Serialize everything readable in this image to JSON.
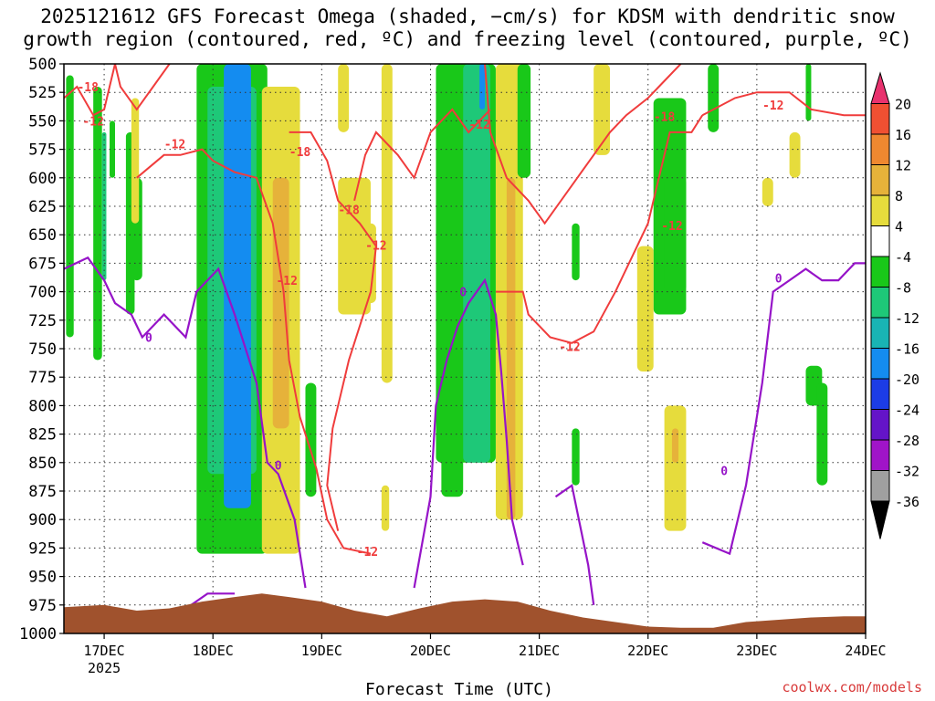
{
  "chart_data": {
    "type": "heatmap",
    "title_line1": "2025121612 GFS Forecast Omega (shaded, −cm/s) for KDSM with dendritic snow",
    "title_line2": "growth region (contoured, red, ºC) and freezing level (contoured, purple, ºC)",
    "xlabel": "Forecast Time (UTC)",
    "credit": "coolwx.com/models",
    "x_ticks": [
      {
        "label": "17DEC",
        "day": 1
      },
      {
        "label": "18DEC",
        "day": 2
      },
      {
        "label": "19DEC",
        "day": 3
      },
      {
        "label": "20DEC",
        "day": 4
      },
      {
        "label": "21DEC",
        "day": 5
      },
      {
        "label": "22DEC",
        "day": 6
      },
      {
        "label": "23DEC",
        "day": 7
      },
      {
        "label": "24DEC",
        "day": 8
      }
    ],
    "x_year_label": "2025",
    "x_range_days": [
      0.63,
      8.0
    ],
    "y_label_unit": "hPa",
    "y_ticks": [
      500,
      525,
      550,
      575,
      600,
      625,
      650,
      675,
      700,
      725,
      750,
      775,
      800,
      825,
      850,
      875,
      900,
      925,
      950,
      975,
      1000
    ],
    "y_range": [
      500,
      1000
    ],
    "colorbar": {
      "levels": [
        20,
        16,
        12,
        8,
        4,
        -4,
        -8,
        -12,
        -16,
        -20,
        -24,
        -28,
        -32,
        -36
      ],
      "colors": [
        "#e8326e",
        "#f05032",
        "#ef8830",
        "#e6b23a",
        "#e6dc3c",
        "#ffffff",
        "#19c819",
        "#1ec878",
        "#19b4b4",
        "#148cf0",
        "#1c3ce6",
        "#6414c8",
        "#a014c8",
        "#a0a0a0",
        "#000000"
      ]
    },
    "omega_regions": [
      {
        "time": [
          0.65,
          0.72
        ],
        "p": [
          510,
          740
        ],
        "class": "green"
      },
      {
        "time": [
          0.9,
          0.98
        ],
        "p": [
          520,
          760
        ],
        "class": "green"
      },
      {
        "time": [
          0.98,
          1.02
        ],
        "p": [
          560,
          690
        ],
        "class": "teal"
      },
      {
        "time": [
          1.05,
          1.1
        ],
        "p": [
          550,
          600
        ],
        "class": "green"
      },
      {
        "time": [
          1.2,
          1.28
        ],
        "p": [
          560,
          720
        ],
        "class": "green"
      },
      {
        "time": [
          1.25,
          1.35
        ],
        "p": [
          600,
          690
        ],
        "class": "green"
      },
      {
        "time": [
          1.25,
          1.32
        ],
        "p": [
          530,
          640
        ],
        "class": "yellow"
      },
      {
        "time": [
          1.85,
          2.5
        ],
        "p": [
          500,
          930
        ],
        "class": "green"
      },
      {
        "time": [
          1.95,
          2.4
        ],
        "p": [
          520,
          860
        ],
        "class": "teal"
      },
      {
        "time": [
          2.1,
          2.35
        ],
        "p": [
          500,
          890
        ],
        "class": "blue"
      },
      {
        "time": [
          2.45,
          2.8
        ],
        "p": [
          520,
          930
        ],
        "class": "yellow"
      },
      {
        "time": [
          2.55,
          2.7
        ],
        "p": [
          600,
          820
        ],
        "class": "orange"
      },
      {
        "time": [
          2.85,
          2.95
        ],
        "p": [
          780,
          880
        ],
        "class": "green"
      },
      {
        "time": [
          3.15,
          3.25
        ],
        "p": [
          500,
          560
        ],
        "class": "yellow"
      },
      {
        "time": [
          3.15,
          3.45
        ],
        "p": [
          600,
          720
        ],
        "class": "yellow"
      },
      {
        "time": [
          3.4,
          3.5
        ],
        "p": [
          640,
          710
        ],
        "class": "yellow"
      },
      {
        "time": [
          3.55,
          3.65
        ],
        "p": [
          500,
          780
        ],
        "class": "yellow"
      },
      {
        "time": [
          3.55,
          3.62
        ],
        "p": [
          870,
          910
        ],
        "class": "yellow"
      },
      {
        "time": [
          4.1,
          4.3
        ],
        "p": [
          600,
          880
        ],
        "class": "green"
      },
      {
        "time": [
          4.05,
          4.6
        ],
        "p": [
          500,
          850
        ],
        "class": "green"
      },
      {
        "time": [
          4.3,
          4.55
        ],
        "p": [
          500,
          850
        ],
        "class": "teal"
      },
      {
        "time": [
          4.45,
          4.5
        ],
        "p": [
          500,
          540
        ],
        "class": "blue"
      },
      {
        "time": [
          4.6,
          4.85
        ],
        "p": [
          500,
          900
        ],
        "class": "yellow"
      },
      {
        "time": [
          4.7,
          4.78
        ],
        "p": [
          600,
          900
        ],
        "class": "orange"
      },
      {
        "time": [
          4.8,
          4.92
        ],
        "p": [
          500,
          600
        ],
        "class": "green"
      },
      {
        "time": [
          5.3,
          5.37
        ],
        "p": [
          640,
          690
        ],
        "class": "green"
      },
      {
        "time": [
          5.3,
          5.37
        ],
        "p": [
          820,
          870
        ],
        "class": "green"
      },
      {
        "time": [
          5.5,
          5.65
        ],
        "p": [
          500,
          580
        ],
        "class": "yellow"
      },
      {
        "time": [
          6.05,
          6.35
        ],
        "p": [
          530,
          720
        ],
        "class": "green"
      },
      {
        "time": [
          6.15,
          6.35
        ],
        "p": [
          600,
          700
        ],
        "class": "green"
      },
      {
        "time": [
          5.9,
          6.05
        ],
        "p": [
          660,
          770
        ],
        "class": "yellow"
      },
      {
        "time": [
          6.15,
          6.35
        ],
        "p": [
          800,
          910
        ],
        "class": "yellow"
      },
      {
        "time": [
          6.22,
          6.28
        ],
        "p": [
          820,
          850
        ],
        "class": "orange"
      },
      {
        "time": [
          6.55,
          6.65
        ],
        "p": [
          500,
          560
        ],
        "class": "green"
      },
      {
        "time": [
          7.05,
          7.15
        ],
        "p": [
          600,
          625
        ],
        "class": "yellow"
      },
      {
        "time": [
          7.3,
          7.4
        ],
        "p": [
          560,
          600
        ],
        "class": "yellow"
      },
      {
        "time": [
          7.45,
          7.5
        ],
        "p": [
          500,
          550
        ],
        "class": "green"
      },
      {
        "time": [
          7.45,
          7.6
        ],
        "p": [
          765,
          800
        ],
        "class": "green"
      },
      {
        "time": [
          7.55,
          7.65
        ],
        "p": [
          780,
          870
        ],
        "class": "green"
      }
    ],
    "red_contour_labels": [
      {
        "text": "-18",
        "time": 0.85,
        "p": 520
      },
      {
        "text": "-12",
        "time": 0.9,
        "p": 550
      },
      {
        "text": "-12",
        "time": 1.65,
        "p": 570
      },
      {
        "text": "-18",
        "time": 2.8,
        "p": 577
      },
      {
        "text": "-18",
        "time": 3.25,
        "p": 628
      },
      {
        "text": "-12",
        "time": 3.5,
        "p": 659
      },
      {
        "text": "-12",
        "time": 2.68,
        "p": 690
      },
      {
        "text": "-12",
        "time": 3.42,
        "p": 928
      },
      {
        "text": "-12",
        "time": 4.45,
        "p": 553
      },
      {
        "text": "-12",
        "time": 5.28,
        "p": 748
      },
      {
        "text": "-12",
        "time": 6.22,
        "p": 642
      },
      {
        "text": "-18",
        "time": 6.15,
        "p": 546
      },
      {
        "text": "-12",
        "time": 7.15,
        "p": 536
      }
    ],
    "purple_contour_labels": [
      {
        "text": "0",
        "time": 1.41,
        "p": 740
      },
      {
        "text": "0",
        "time": 2.6,
        "p": 852
      },
      {
        "text": "0",
        "time": 4.3,
        "p": 700
      },
      {
        "text": "0",
        "time": 6.7,
        "p": 857
      },
      {
        "text": "0",
        "time": 7.2,
        "p": 688
      }
    ],
    "red_contours": [
      [
        [
          0.63,
          530
        ],
        [
          0.75,
          520
        ],
        [
          0.9,
          545
        ],
        [
          1.0,
          540
        ],
        [
          1.05,
          520
        ],
        [
          1.1,
          500
        ]
      ],
      [
        [
          1.3,
          600
        ],
        [
          1.55,
          580
        ],
        [
          1.7,
          580
        ],
        [
          1.9,
          575
        ],
        [
          2.0,
          585
        ],
        [
          2.2,
          595
        ],
        [
          2.4,
          600
        ],
        [
          2.55,
          640
        ],
        [
          2.65,
          700
        ],
        [
          2.7,
          760
        ],
        [
          2.8,
          810
        ],
        [
          2.95,
          855
        ],
        [
          3.05,
          900
        ],
        [
          3.2,
          925
        ],
        [
          3.45,
          930
        ]
      ],
      [
        [
          1.1,
          500
        ],
        [
          1.15,
          520
        ],
        [
          1.3,
          540
        ],
        [
          1.45,
          520
        ],
        [
          1.6,
          500
        ]
      ],
      [
        [
          2.7,
          560
        ],
        [
          2.9,
          560
        ],
        [
          3.05,
          585
        ],
        [
          3.15,
          620
        ],
        [
          3.35,
          640
        ],
        [
          3.5,
          660
        ],
        [
          3.45,
          700
        ],
        [
          3.25,
          760
        ],
        [
          3.1,
          820
        ],
        [
          3.05,
          870
        ],
        [
          3.15,
          910
        ]
      ],
      [
        [
          3.3,
          620
        ],
        [
          3.4,
          580
        ],
        [
          3.5,
          560
        ],
        [
          3.7,
          580
        ],
        [
          3.85,
          600
        ],
        [
          4.0,
          560
        ],
        [
          4.2,
          540
        ],
        [
          4.35,
          560
        ],
        [
          4.55,
          540
        ]
      ],
      [
        [
          4.5,
          500
        ],
        [
          4.55,
          560
        ],
        [
          4.7,
          600
        ],
        [
          4.9,
          620
        ],
        [
          5.05,
          640
        ],
        [
          5.2,
          620
        ],
        [
          5.35,
          600
        ],
        [
          5.5,
          580
        ],
        [
          5.65,
          560
        ],
        [
          5.8,
          545
        ],
        [
          6.0,
          530
        ],
        [
          6.1,
          520
        ],
        [
          6.3,
          500
        ]
      ],
      [
        [
          4.6,
          700
        ],
        [
          4.85,
          700
        ],
        [
          4.9,
          720
        ],
        [
          5.1,
          740
        ],
        [
          5.3,
          745
        ],
        [
          5.5,
          735
        ],
        [
          5.7,
          700
        ],
        [
          5.9,
          660
        ],
        [
          6.0,
          640
        ],
        [
          6.1,
          600
        ],
        [
          6.2,
          560
        ],
        [
          6.4,
          560
        ],
        [
          6.5,
          545
        ]
      ],
      [
        [
          6.5,
          545
        ],
        [
          6.8,
          530
        ],
        [
          7.0,
          525
        ],
        [
          7.3,
          525
        ],
        [
          7.5,
          540
        ],
        [
          7.8,
          545
        ],
        [
          8.0,
          545
        ]
      ]
    ],
    "purple_contours": [
      [
        [
          0.63,
          680
        ],
        [
          0.85,
          670
        ],
        [
          1.0,
          690
        ],
        [
          1.1,
          710
        ],
        [
          1.25,
          720
        ],
        [
          1.35,
          740
        ],
        [
          1.55,
          720
        ],
        [
          1.75,
          740
        ],
        [
          1.85,
          700
        ],
        [
          2.05,
          680
        ],
        [
          2.2,
          720
        ],
        [
          2.4,
          780
        ],
        [
          2.5,
          850
        ],
        [
          2.6,
          860
        ],
        [
          2.75,
          900
        ],
        [
          2.85,
          960
        ]
      ],
      [
        [
          1.8,
          975
        ],
        [
          1.95,
          965
        ],
        [
          2.2,
          965
        ]
      ],
      [
        [
          3.85,
          960
        ],
        [
          4.0,
          880
        ],
        [
          4.05,
          800
        ],
        [
          4.15,
          760
        ],
        [
          4.25,
          730
        ],
        [
          4.35,
          710
        ],
        [
          4.5,
          690
        ],
        [
          4.6,
          720
        ],
        [
          4.65,
          770
        ],
        [
          4.7,
          830
        ],
        [
          4.75,
          900
        ],
        [
          4.85,
          940
        ]
      ],
      [
        [
          5.15,
          880
        ],
        [
          5.3,
          870
        ],
        [
          5.45,
          940
        ],
        [
          5.5,
          975
        ]
      ],
      [
        [
          6.5,
          920
        ],
        [
          6.75,
          930
        ],
        [
          6.9,
          870
        ],
        [
          7.05,
          780
        ],
        [
          7.15,
          700
        ],
        [
          7.3,
          690
        ],
        [
          7.45,
          680
        ],
        [
          7.6,
          690
        ],
        [
          7.75,
          690
        ],
        [
          7.9,
          675
        ],
        [
          8.0,
          675
        ]
      ]
    ],
    "terrain_surface": [
      [
        0.63,
        977
      ],
      [
        1.0,
        975
      ],
      [
        1.3,
        980
      ],
      [
        1.6,
        978
      ],
      [
        1.9,
        972
      ],
      [
        2.2,
        968
      ],
      [
        2.45,
        965
      ],
      [
        2.7,
        968
      ],
      [
        3.0,
        972
      ],
      [
        3.3,
        980
      ],
      [
        3.6,
        985
      ],
      [
        3.9,
        978
      ],
      [
        4.2,
        972
      ],
      [
        4.5,
        970
      ],
      [
        4.8,
        972
      ],
      [
        5.1,
        980
      ],
      [
        5.4,
        986
      ],
      [
        5.7,
        990
      ],
      [
        6.0,
        994
      ],
      [
        6.3,
        995
      ],
      [
        6.6,
        995
      ],
      [
        6.9,
        990
      ],
      [
        7.2,
        988
      ],
      [
        7.5,
        986
      ],
      [
        7.8,
        985
      ],
      [
        8.0,
        985
      ]
    ]
  }
}
